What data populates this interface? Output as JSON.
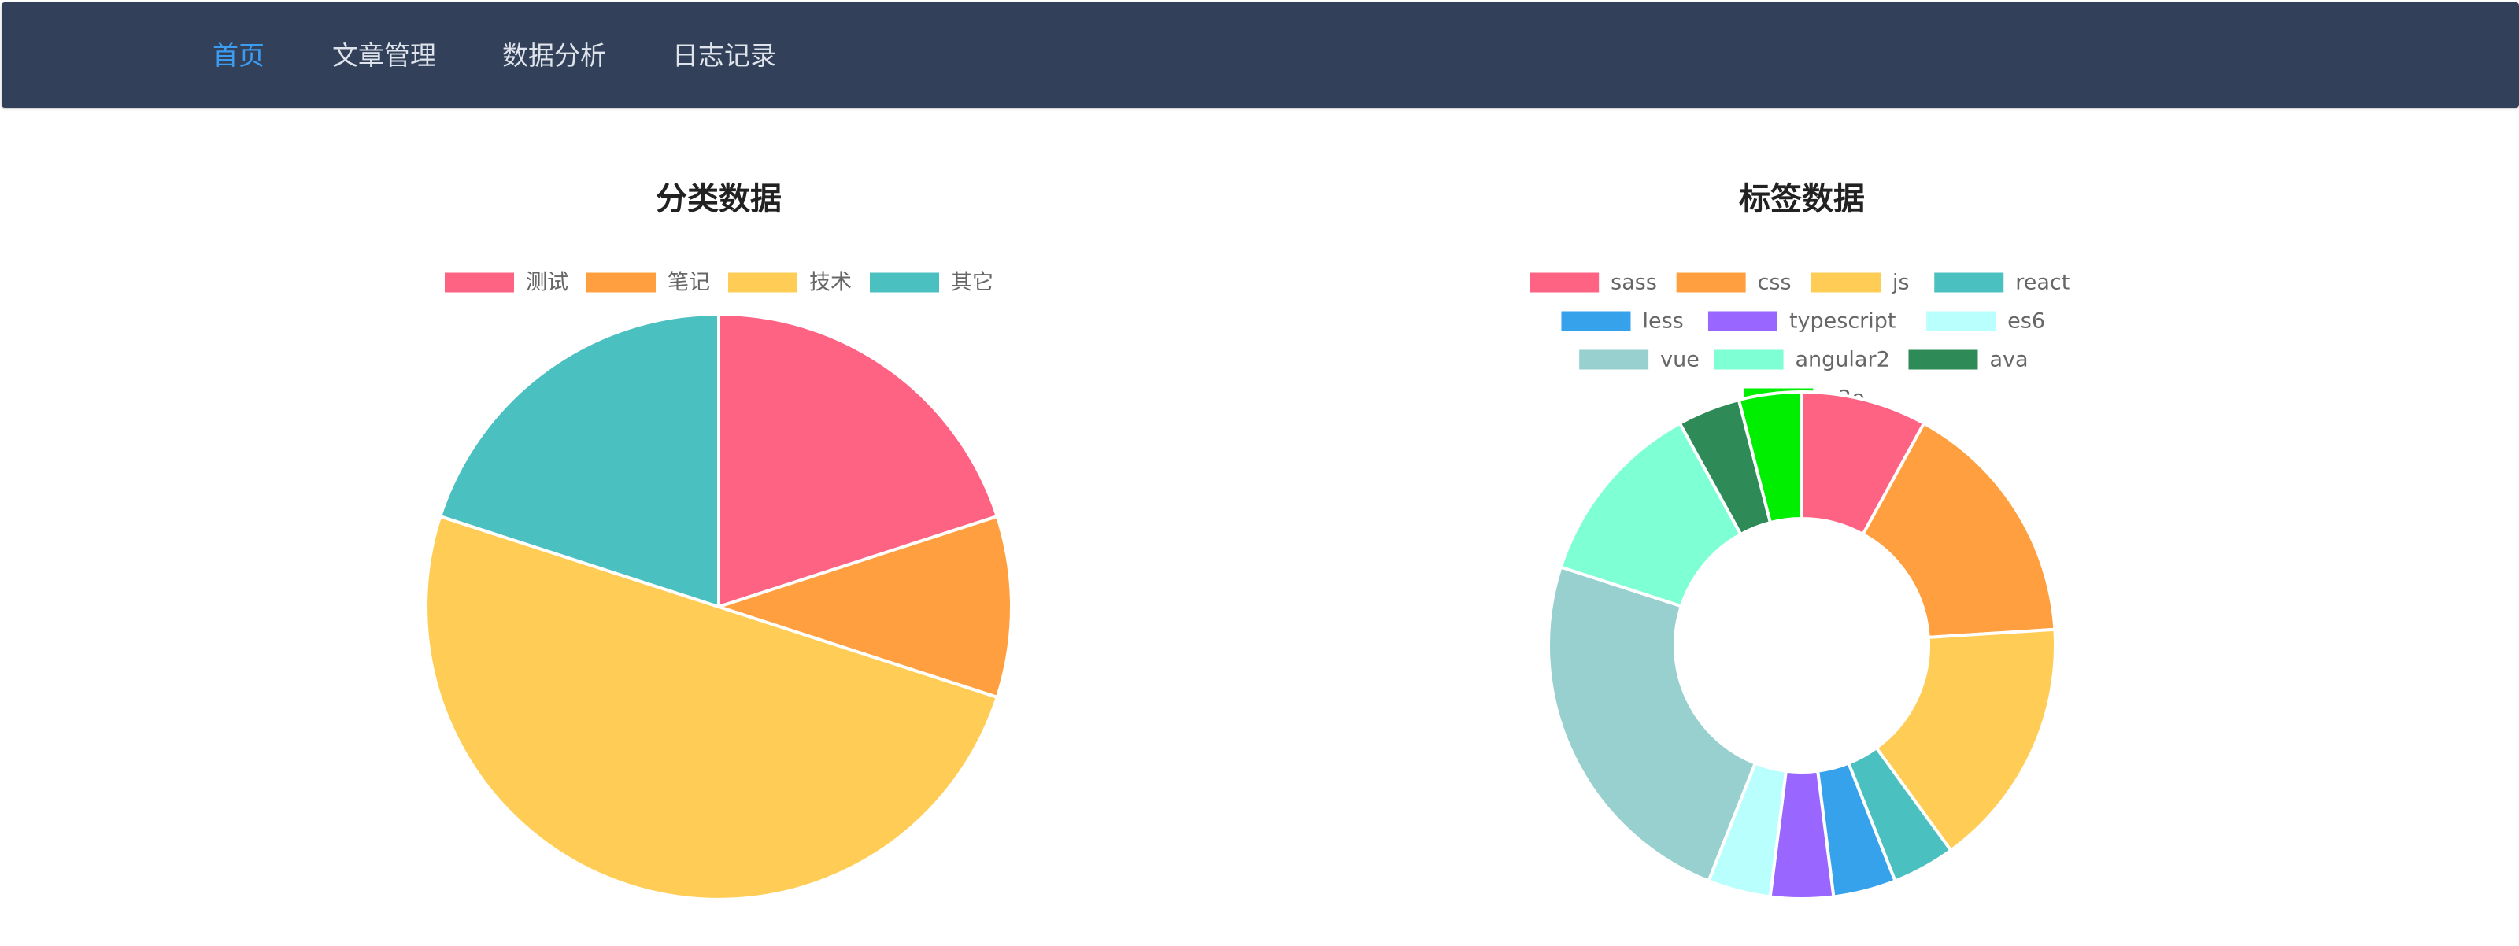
{
  "nav": {
    "items": [
      {
        "label": "首页",
        "active": true
      },
      {
        "label": "文章管理",
        "active": false
      },
      {
        "label": "数据分析",
        "active": false
      },
      {
        "label": "日志记录",
        "active": false
      }
    ],
    "active_color": "#3c9cf0",
    "text_color": "#dfe4ec",
    "background": "#324059"
  },
  "chart_data": [
    {
      "type": "pie",
      "title": "分类数据",
      "legend_position": "top",
      "categories": [
        "测试",
        "笔记",
        "技术",
        "其它"
      ],
      "values": [
        2,
        1,
        5,
        2
      ],
      "colors": [
        "#ff6384",
        "#ff9f40",
        "#ffcd56",
        "#4bc0c0"
      ]
    },
    {
      "type": "doughnut",
      "title": "标签数据",
      "legend_position": "top",
      "categories": [
        "sass",
        "css",
        "js",
        "react",
        "less",
        "typescript",
        "es6",
        "vue",
        "angular2",
        "ava",
        "e2e"
      ],
      "values": [
        2,
        4,
        4,
        1,
        1,
        1,
        1,
        6,
        3,
        1,
        1
      ],
      "colors": [
        "#ff6384",
        "#ff9f40",
        "#ffcd56",
        "#4bc0c0",
        "#36a2eb",
        "#9966ff",
        "#b8fffd",
        "#97d0cf",
        "#7fffd4",
        "#2e8b57",
        "#00ee00"
      ]
    }
  ]
}
